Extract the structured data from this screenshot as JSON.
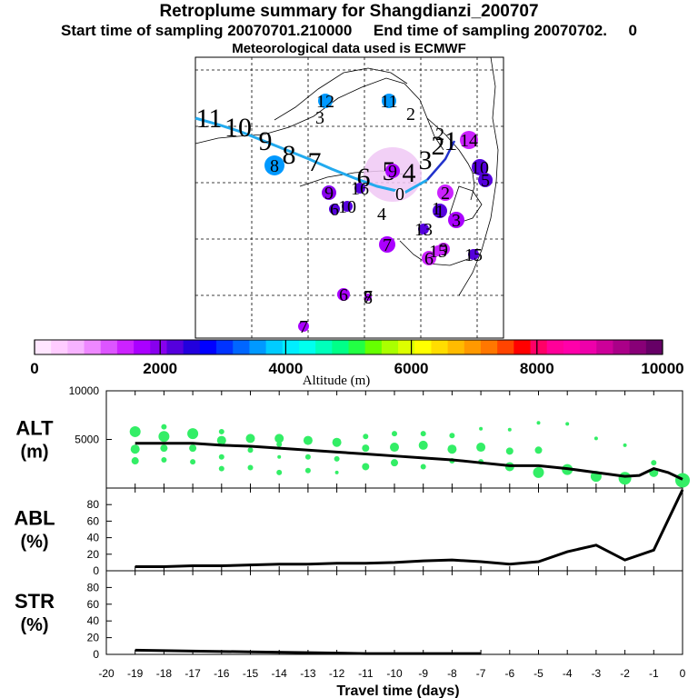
{
  "header": {
    "title": "Retroplume summary for Shangdianzi_200707",
    "subtitle": "Start time of sampling 20070701.210000     End time of sampling 20070702.     0",
    "met": "Meteorological data used is ECMWF"
  },
  "colors": {
    "palette": [
      "#ffe6ff",
      "#ffccff",
      "#f7b3ff",
      "#ee88ff",
      "#dd55ff",
      "#cc22ff",
      "#aa00ff",
      "#8800ee",
      "#5500dd",
      "#2200dd",
      "#0000ff",
      "#0033ff",
      "#0066ff",
      "#0099ff",
      "#00ccff",
      "#00eeff",
      "#00ffee",
      "#00ffbb",
      "#00ff88",
      "#22ff44",
      "#66ff00",
      "#aaff00",
      "#ddff00",
      "#ffff00",
      "#ffdd00",
      "#ffbb00",
      "#ff9900",
      "#ff7700",
      "#ff4400",
      "#ff0000",
      "#ff0066",
      "#ff0099",
      "#ff00aa",
      "#ee00aa",
      "#cc0099",
      "#aa0088",
      "#880077",
      "#660066"
    ],
    "track": "#22aaee",
    "alt_dots": "#33ee66"
  },
  "chart_data": [
    {
      "type": "map",
      "title": "Retroplume trajectory map",
      "colorbar": {
        "label": "Altitude (m)",
        "ticks": [
          "0",
          "2000",
          "4000",
          "6000",
          "8000",
          "10000"
        ],
        "range": [
          0,
          10000
        ]
      },
      "track_day_labels": [
        "11",
        "10",
        "9",
        "8",
        "7",
        "6",
        "5",
        "4",
        "3",
        "2",
        "1"
      ],
      "clusters": [
        {
          "label": "12",
          "altitude": 3600
        },
        {
          "label": "11",
          "altitude": 3600
        },
        {
          "label": "8",
          "altitude": 3600
        },
        {
          "label": "9",
          "altitude": 2100
        },
        {
          "label": "6",
          "altitude": 2200
        },
        {
          "label": "10",
          "altitude": 2200
        },
        {
          "label": "7",
          "altitude": 1600
        },
        {
          "label": "6",
          "altitude": 1500
        },
        {
          "label": "14",
          "altitude": 1500
        },
        {
          "label": "13",
          "altitude": 2200
        },
        {
          "label": "10",
          "altitude": 2200
        },
        {
          "label": "5",
          "altitude": 2200
        },
        {
          "label": "2",
          "altitude": 1500
        },
        {
          "label": "3",
          "altitude": 1600
        },
        {
          "label": "1",
          "altitude": 2200
        },
        {
          "label": "9",
          "altitude": 1400
        },
        {
          "label": "15",
          "altitude": 1400
        },
        {
          "label": "15",
          "altitude": 2200
        },
        {
          "label": "16",
          "altitude": 2200
        },
        {
          "label": "6",
          "altitude": 1600
        },
        {
          "label": "8",
          "altitude": 1600
        },
        {
          "label": "7",
          "altitude": 1600
        },
        {
          "label": "9",
          "altitude": 1600
        },
        {
          "label": "0",
          "altitude": 200
        }
      ],
      "plain_labels": [
        "3",
        "2",
        "4",
        "7",
        "1",
        "2"
      ]
    },
    {
      "type": "scatter",
      "title": "ALT",
      "ylabel": "ALT\n(m)",
      "xlabel": "Travel time (days)",
      "xlim": [
        -20,
        0
      ],
      "ylim": [
        0,
        10000
      ],
      "yticks": [
        "5000",
        "10000"
      ],
      "mean_line": {
        "x": [
          -19,
          -18,
          -17,
          -16,
          -15,
          -14,
          -13,
          -12,
          -11,
          -10,
          -9,
          -8,
          -7,
          -6,
          -5,
          -4,
          -3,
          -2,
          -1.5,
          -1,
          -0.5,
          0
        ],
        "y": [
          4600,
          4600,
          4600,
          4400,
          4300,
          4100,
          3900,
          3700,
          3500,
          3300,
          3100,
          2900,
          2600,
          2300,
          2300,
          2000,
          1600,
          1200,
          1300,
          2000,
          1600,
          900
        ]
      },
      "points": [
        {
          "x": -19,
          "y": 5800,
          "w": 5
        },
        {
          "x": -19,
          "y": 4000,
          "w": 4
        },
        {
          "x": -19,
          "y": 2800,
          "w": 3
        },
        {
          "x": -18,
          "y": 6300,
          "w": 2
        },
        {
          "x": -18,
          "y": 5300,
          "w": 5
        },
        {
          "x": -18,
          "y": 4100,
          "w": 3
        },
        {
          "x": -18,
          "y": 2900,
          "w": 2
        },
        {
          "x": -17,
          "y": 5600,
          "w": 5
        },
        {
          "x": -17,
          "y": 4100,
          "w": 3
        },
        {
          "x": -17,
          "y": 2700,
          "w": 2
        },
        {
          "x": -16,
          "y": 5800,
          "w": 2
        },
        {
          "x": -16,
          "y": 4900,
          "w": 4
        },
        {
          "x": -16,
          "y": 3200,
          "w": 2
        },
        {
          "x": -16,
          "y": 2000,
          "w": 2
        },
        {
          "x": -15,
          "y": 5100,
          "w": 4
        },
        {
          "x": -15,
          "y": 3900,
          "w": 2
        },
        {
          "x": -15,
          "y": 2100,
          "w": 2
        },
        {
          "x": -14,
          "y": 5100,
          "w": 4
        },
        {
          "x": -14,
          "y": 4500,
          "w": 2
        },
        {
          "x": -14,
          "y": 3200,
          "w": 1
        },
        {
          "x": -14,
          "y": 1600,
          "w": 2
        },
        {
          "x": -13,
          "y": 4900,
          "w": 4
        },
        {
          "x": -13,
          "y": 3200,
          "w": 2
        },
        {
          "x": -13,
          "y": 1800,
          "w": 2
        },
        {
          "x": -12,
          "y": 4700,
          "w": 4
        },
        {
          "x": -12,
          "y": 3000,
          "w": 2
        },
        {
          "x": -12,
          "y": 1600,
          "w": 1
        },
        {
          "x": -11,
          "y": 5300,
          "w": 2
        },
        {
          "x": -11,
          "y": 4100,
          "w": 3
        },
        {
          "x": -11,
          "y": 2200,
          "w": 3
        },
        {
          "x": -10,
          "y": 5600,
          "w": 2
        },
        {
          "x": -10,
          "y": 4200,
          "w": 4
        },
        {
          "x": -10,
          "y": 2600,
          "w": 3
        },
        {
          "x": -9,
          "y": 5600,
          "w": 2
        },
        {
          "x": -9,
          "y": 4400,
          "w": 4
        },
        {
          "x": -9,
          "y": 2200,
          "w": 2
        },
        {
          "x": -8,
          "y": 5400,
          "w": 2
        },
        {
          "x": -8,
          "y": 4000,
          "w": 4
        },
        {
          "x": -8,
          "y": 2800,
          "w": 2
        },
        {
          "x": -7,
          "y": 6100,
          "w": 1
        },
        {
          "x": -7,
          "y": 4200,
          "w": 4
        },
        {
          "x": -7,
          "y": 2700,
          "w": 2
        },
        {
          "x": -6,
          "y": 6000,
          "w": 1
        },
        {
          "x": -6,
          "y": 3800,
          "w": 3
        },
        {
          "x": -6,
          "y": 2200,
          "w": 4
        },
        {
          "x": -5,
          "y": 6700,
          "w": 1
        },
        {
          "x": -5,
          "y": 3900,
          "w": 3
        },
        {
          "x": -5,
          "y": 1600,
          "w": 5
        },
        {
          "x": -4,
          "y": 6600,
          "w": 1
        },
        {
          "x": -4,
          "y": 1900,
          "w": 5
        },
        {
          "x": -3,
          "y": 5100,
          "w": 1
        },
        {
          "x": -3,
          "y": 1200,
          "w": 5
        },
        {
          "x": -2,
          "y": 4400,
          "w": 1
        },
        {
          "x": -2,
          "y": 1000,
          "w": 6
        },
        {
          "x": -1,
          "y": 2600,
          "w": 2
        },
        {
          "x": -1,
          "y": 1600,
          "w": 4
        },
        {
          "x": 0,
          "y": 800,
          "w": 7
        }
      ]
    },
    {
      "type": "line",
      "title": "ABL",
      "ylabel": "ABL\n(%)",
      "xlim": [
        -20,
        0
      ],
      "ylim": [
        0,
        100
      ],
      "yticks": [
        "0",
        "20",
        "40",
        "60",
        "80"
      ],
      "x": [
        -19,
        -18,
        -17,
        -16,
        -15,
        -14,
        -13,
        -12,
        -11,
        -10,
        -9,
        -8,
        -7,
        -6,
        -5,
        -4,
        -3,
        -2,
        -1,
        0
      ],
      "y": [
        5,
        5,
        6,
        6,
        7,
        8,
        8,
        9,
        9,
        10,
        12,
        13,
        11,
        8,
        11,
        23,
        31,
        13,
        25,
        98
      ]
    },
    {
      "type": "line",
      "title": "STR",
      "ylabel": "STR\n(%)",
      "xlim": [
        -20,
        0
      ],
      "ylim": [
        0,
        100
      ],
      "yticks": [
        "0",
        "20",
        "40",
        "60",
        "80"
      ],
      "xticks": [
        "-20",
        "-19",
        "-18",
        "-17",
        "-16",
        "-15",
        "-14",
        "-13",
        "-12",
        "-11",
        "-10",
        "-9",
        "-8",
        "-7",
        "-6",
        "-5",
        "-4",
        "-3",
        "-2",
        "-1",
        "0"
      ],
      "xlabel": "Travel time (days)",
      "x": [
        -19,
        -17,
        -15,
        -13,
        -11,
        -9,
        -7
      ],
      "y": [
        5,
        4,
        3,
        2,
        1,
        1,
        1
      ]
    }
  ]
}
